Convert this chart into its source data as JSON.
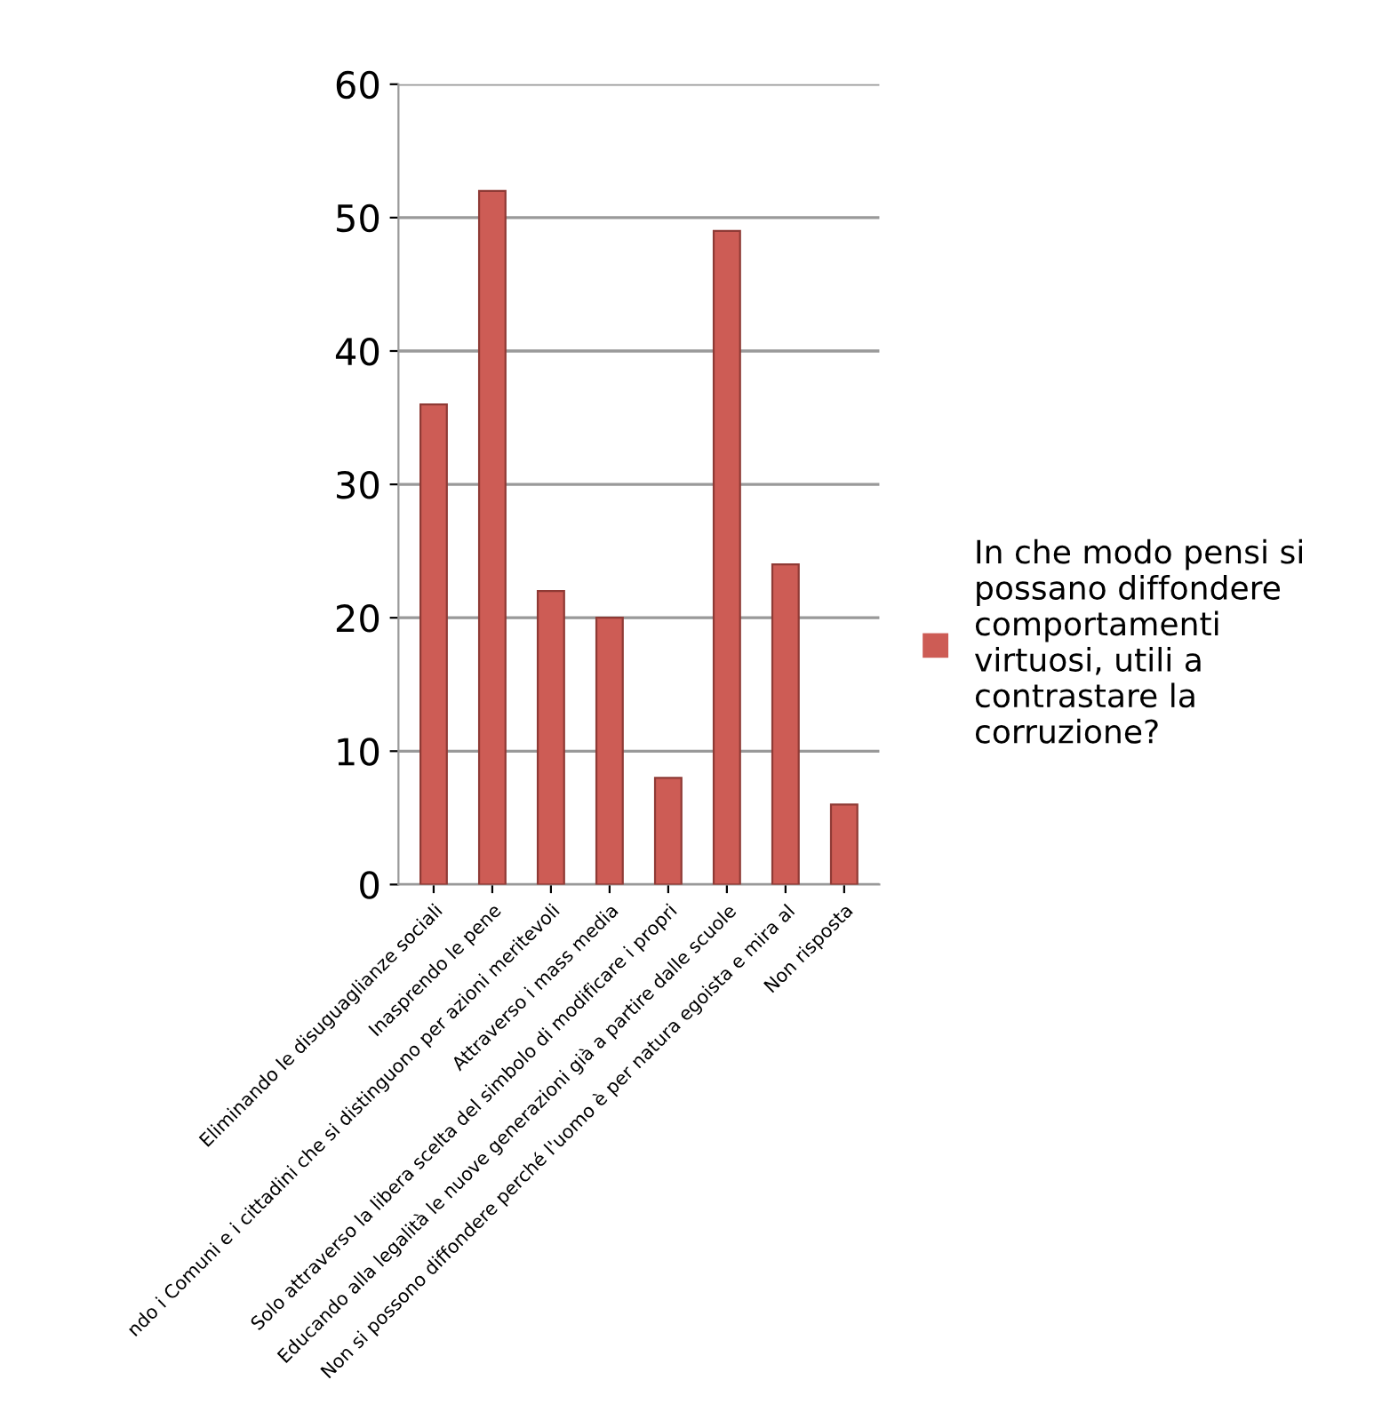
{
  "chart_data": {
    "type": "bar",
    "categories": [
      "Eliminando le disuguaglianze sociali",
      "Inasprendo le pene",
      "ndo i Comuni e i cittadini che si distinguono per azioni meritevoli",
      "Attraverso i mass media",
      "Solo attraverso la libera scelta del simbolo di modificare i propri",
      "Educando alla legalità le nuove generazioni già a partire dalle scuole",
      "Non si possono diffondere perché l'uomo è per natura egoista e mira al",
      "Non risposta"
    ],
    "series": [
      {
        "name": "In che modo pensi si\npossano diffondere\ncomportamenti\nvirtuosi, utili a\ncontrastare la\ncorruzione?",
        "color": "#cd5c55",
        "values": [
          36,
          52,
          22,
          20,
          8,
          49,
          24,
          6
        ]
      }
    ],
    "ylim": [
      0,
      60
    ],
    "yticks": [
      0,
      10,
      20,
      30,
      40,
      50,
      60
    ],
    "grid": "y",
    "legend": "right"
  }
}
